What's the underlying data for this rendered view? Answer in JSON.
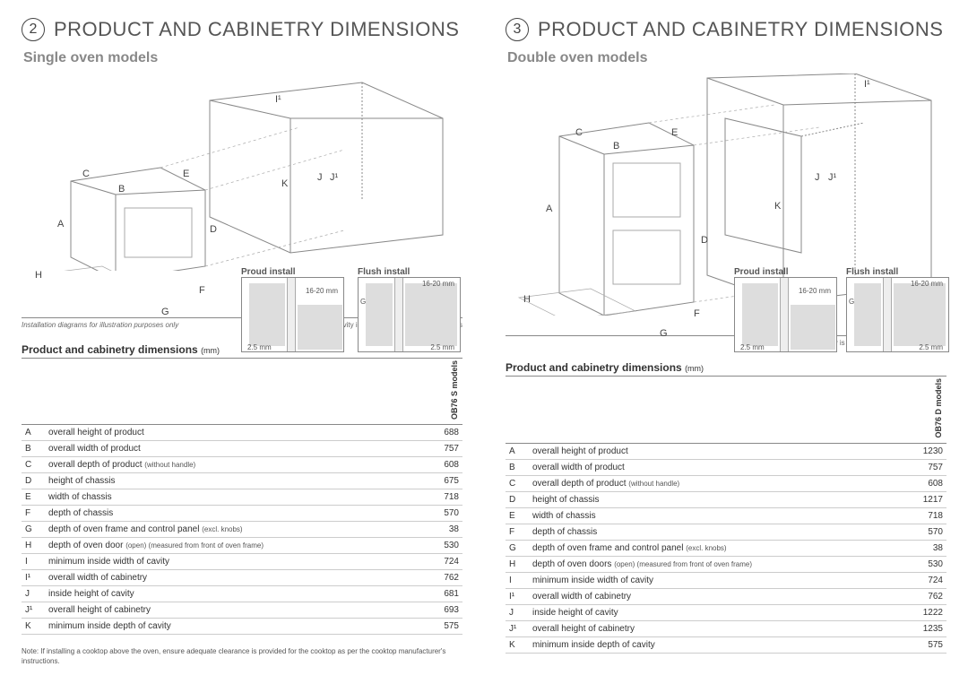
{
  "pages": [
    {
      "number": "2",
      "title": "PRODUCT AND CABINETRY DIMENSIONS",
      "subtitle": "Single oven models",
      "diagram_labels": [
        "A",
        "B",
        "C",
        "D",
        "E",
        "F",
        "G",
        "H",
        "I¹",
        "J",
        "J¹",
        "K"
      ],
      "install_labels": {
        "proud": "Proud install",
        "flush": "Flush install"
      },
      "mm_labels": {
        "gap": "16-20 mm",
        "edge": "2.5 mm",
        "g": "G"
      },
      "footnote_left": "Installation diagrams for illustration purposes only",
      "footnote_right": "Ensure the cavity is completely sealed with no gaps",
      "table_title": "Product and cabinetry dimensions",
      "table_unit": "(mm)",
      "model_header": "OB76 S models",
      "rows": [
        {
          "k": "A",
          "d": "overall height of product",
          "v": "688"
        },
        {
          "k": "B",
          "d": "overall width of product",
          "v": "757"
        },
        {
          "k": "C",
          "d": "overall depth of product",
          "n": "(without handle)",
          "v": "608"
        },
        {
          "k": "D",
          "d": "height of chassis",
          "v": "675"
        },
        {
          "k": "E",
          "d": "width of chassis",
          "v": "718"
        },
        {
          "k": "F",
          "d": "depth of chassis",
          "v": "570"
        },
        {
          "k": "G",
          "d": "depth of oven frame and control panel",
          "n": "(excl. knobs)",
          "v": "38"
        },
        {
          "k": "H",
          "d": "depth of oven door",
          "n": "(open) (measured from front of oven frame)",
          "v": "530"
        },
        {
          "k": "I",
          "d": "minimum inside width of cavity",
          "v": "724"
        },
        {
          "k": "I¹",
          "d": "overall width of cabinetry",
          "v": "762"
        },
        {
          "k": "J",
          "d": "inside height of cavity",
          "v": "681"
        },
        {
          "k": "J¹",
          "d": "overall height of cabinetry",
          "v": "693"
        },
        {
          "k": "K",
          "d": "minimum inside depth of cavity",
          "v": "575"
        }
      ],
      "bottom_note": "Note: If installing a cooktop above the oven, ensure adequate clearance is provided for the cooktop as per the cooktop manufacturer's instructions."
    },
    {
      "number": "3",
      "title": "PRODUCT AND CABINETRY DIMENSIONS",
      "subtitle": "Double oven models",
      "diagram_labels": [
        "A",
        "B",
        "C",
        "D",
        "E",
        "F",
        "G",
        "H",
        "I¹",
        "J",
        "J¹",
        "K"
      ],
      "install_labels": {
        "proud": "Proud install",
        "flush": "Flush install"
      },
      "mm_labels": {
        "gap": "16-20 mm",
        "edge": "2.5 mm",
        "g": "G"
      },
      "footnote_left": "",
      "footnote_right": "Ensure the cavity is completely sealed with no gaps",
      "table_title": "Product and cabinetry dimensions",
      "table_unit": "(mm)",
      "model_header": "OB76 D models",
      "rows": [
        {
          "k": "A",
          "d": "overall height of product",
          "v": "1230"
        },
        {
          "k": "B",
          "d": "overall width of product",
          "v": "757"
        },
        {
          "k": "C",
          "d": "overall depth of product",
          "n": "(without handle)",
          "v": "608"
        },
        {
          "k": "D",
          "d": "height of chassis",
          "v": "1217"
        },
        {
          "k": "E",
          "d": "width of chassis",
          "v": "718"
        },
        {
          "k": "F",
          "d": "depth of chassis",
          "v": "570"
        },
        {
          "k": "G",
          "d": "depth of oven frame and control panel",
          "n": "(excl. knobs)",
          "v": "38"
        },
        {
          "k": "H",
          "d": "depth of oven doors",
          "n": "(open) (measured from front of oven frame)",
          "v": "530"
        },
        {
          "k": "I",
          "d": "minimum inside width of cavity",
          "v": "724"
        },
        {
          "k": "I¹",
          "d": "overall width of cabinetry",
          "v": "762"
        },
        {
          "k": "J",
          "d": "inside height of cavity",
          "v": "1222"
        },
        {
          "k": "J¹",
          "d": "overall height of cabinetry",
          "v": "1235"
        },
        {
          "k": "K",
          "d": "minimum inside depth of cavity",
          "v": "575"
        }
      ],
      "bottom_note": ""
    }
  ],
  "colors": {
    "title": "#555555",
    "subtitle": "#888888",
    "line": "#888888",
    "text": "#333333"
  }
}
